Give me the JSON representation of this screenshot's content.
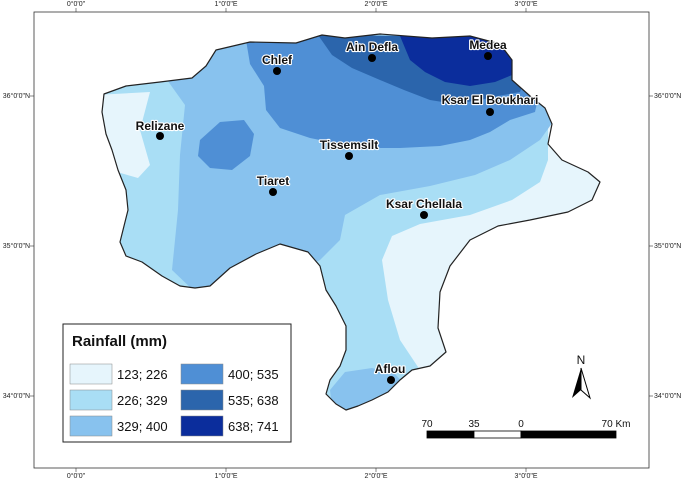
{
  "colors": {
    "class_1": "#e6f5fc",
    "class_2": "#a9def5",
    "class_3": "#88c2ee",
    "class_4": "#4f8fd5",
    "class_5": "#2b65ac",
    "class_6": "#0b2d9c"
  },
  "graticule": {
    "top_labels": [
      "0°0'0\"",
      "1°0'0\"E",
      "2°0'0\"E",
      "3°0'0\"E"
    ],
    "bottom_labels": [
      "0°0'0\"",
      "1°0'0\"E",
      "2°0'0\"E",
      "3°0'0\"E"
    ],
    "left_labels": [
      "36°0'0\"N",
      "35°0'0\"N",
      "34°0'0\"N"
    ],
    "right_labels": [
      "36°0'0\"N",
      "35°0'0\"N",
      "34°0'0\"N"
    ]
  },
  "cities": [
    {
      "name": "Ain Defla"
    },
    {
      "name": "Medea"
    },
    {
      "name": "Chlef"
    },
    {
      "name": "Ksar El Boukhari"
    },
    {
      "name": "Relizane"
    },
    {
      "name": "Tissemsilt"
    },
    {
      "name": "Tiaret"
    },
    {
      "name": "Ksar Chellala"
    },
    {
      "name": "Aflou"
    }
  ],
  "legend": {
    "title": "Rainfall (mm)",
    "items": [
      {
        "label": "123; 226",
        "color": "#e6f5fc"
      },
      {
        "label": "226; 329",
        "color": "#a9def5"
      },
      {
        "label": "329; 400",
        "color": "#88c2ee"
      },
      {
        "label": "400; 535",
        "color": "#4f8fd5"
      },
      {
        "label": "535; 638",
        "color": "#2b65ac"
      },
      {
        "label": "638; 741",
        "color": "#0b2d9c"
      }
    ]
  },
  "north_arrow": {
    "label": "N"
  },
  "scale_bar": {
    "labels": [
      "70",
      "35",
      "0",
      "70 Km"
    ]
  }
}
